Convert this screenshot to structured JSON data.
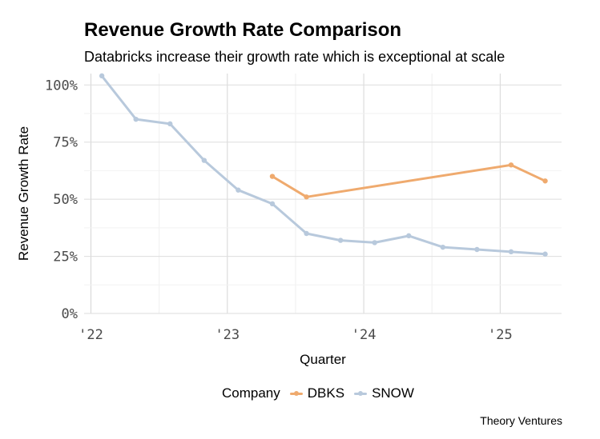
{
  "chart_data": {
    "type": "line",
    "title": "Revenue Growth Rate Comparison",
    "subtitle": "Databricks increase their growth rate which is exceptional at scale",
    "xlabel": "Quarter",
    "ylabel": "Revenue Growth Rate",
    "ylim": [
      0,
      1.05
    ],
    "yticks": [
      0,
      0.25,
      0.5,
      0.75,
      1.0
    ],
    "ytick_labels": [
      "0%",
      "25%",
      "50%",
      "75%",
      "100%"
    ],
    "xlim": [
      2021.95,
      2025.45
    ],
    "xticks": [
      2022,
      2023,
      2024,
      2025
    ],
    "xtick_labels": [
      "'22",
      "'23",
      "'24",
      "'25"
    ],
    "grid": true,
    "legend_title": "Company",
    "legend_position": "bottom",
    "caption": "Theory Ventures",
    "series": [
      {
        "name": "DBKS",
        "color": "#EFAA6E",
        "points": [
          {
            "x": 2023.33,
            "y": 0.6
          },
          {
            "x": 2023.58,
            "y": 0.51
          },
          {
            "x": 2025.08,
            "y": 0.65
          },
          {
            "x": 2025.33,
            "y": 0.58
          }
        ]
      },
      {
        "name": "SNOW",
        "color": "#B8C9DC",
        "points": [
          {
            "x": 2022.08,
            "y": 1.04
          },
          {
            "x": 2022.33,
            "y": 0.85
          },
          {
            "x": 2022.58,
            "y": 0.83
          },
          {
            "x": 2022.83,
            "y": 0.67
          },
          {
            "x": 2023.08,
            "y": 0.54
          },
          {
            "x": 2023.33,
            "y": 0.48
          },
          {
            "x": 2023.58,
            "y": 0.35
          },
          {
            "x": 2023.83,
            "y": 0.32
          },
          {
            "x": 2024.08,
            "y": 0.31
          },
          {
            "x": 2024.33,
            "y": 0.34
          },
          {
            "x": 2024.58,
            "y": 0.29
          },
          {
            "x": 2024.83,
            "y": 0.28
          },
          {
            "x": 2025.08,
            "y": 0.27
          },
          {
            "x": 2025.33,
            "y": 0.26
          }
        ]
      }
    ]
  }
}
